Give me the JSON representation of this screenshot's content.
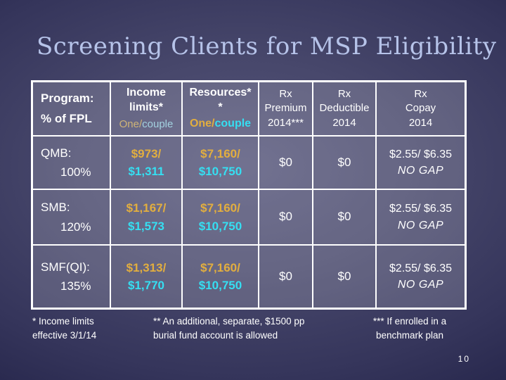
{
  "slide": {
    "title": "Screening Clients for MSP Eligibility",
    "page_number": "10"
  },
  "colors": {
    "background_center": "#56567b",
    "background_edge": "#141438",
    "title_text": "#b6c3e9",
    "table_border": "#ffffff",
    "gold_accent": "#e2ae3f",
    "cyan_accent": "#35dff2",
    "muted_gold": "#cfb477",
    "muted_cyan": "#a3d2e0",
    "body_text": "#ffffff"
  },
  "table": {
    "header": {
      "program_line1": "Program:",
      "program_line2": "% of FPL",
      "income_line1": "Income",
      "income_line2": "limits*",
      "income_one": "One/",
      "income_couple": "couple",
      "resources_line1": "Resources*",
      "resources_line2": "*",
      "resources_one": "One/",
      "resources_couple": "couple",
      "premium_line1": "Rx",
      "premium_line2": "Premium",
      "premium_line3": "2014***",
      "deductible_line1": "Rx",
      "deductible_line2": "Deductible",
      "deductible_line3": "2014",
      "copay_line1": "Rx",
      "copay_line2": "Copay",
      "copay_line3": "2014"
    },
    "rows": [
      {
        "program1": "QMB:",
        "program2": "100%",
        "income_one": "$973/",
        "income_couple": "$1,311",
        "resources_one": "$7,160/",
        "resources_couple": "$10,750",
        "premium": "$0",
        "deductible": "$0",
        "copay1": "$2.55/ $6.35",
        "copay2": "NO GAP"
      },
      {
        "program1": "SMB:",
        "program2": "120%",
        "income_one": "$1,167/",
        "income_couple": "$1,573",
        "resources_one": "$7,160/",
        "resources_couple": "$10,750",
        "premium": "$0",
        "deductible": "$0",
        "copay1": "$2.55/ $6.35",
        "copay2": "NO GAP"
      },
      {
        "program1": "SMF(QI):",
        "program2": "135%",
        "income_one": "$1,313/",
        "income_couple": "$1,770",
        "resources_one": "$7,160/",
        "resources_couple": "$10,750",
        "premium": "$0",
        "deductible": "$0",
        "copay1": "$2.55/ $6.35",
        "copay2": "NO GAP"
      }
    ]
  },
  "footnotes": {
    "note1_line1": "* Income limits",
    "note1_line2": "effective 3/1/14",
    "note2_line1": "** An additional, separate, $1500 pp",
    "note2_line2": "burial fund account is allowed",
    "note3_line1": "*** If enrolled in a",
    "note3_line2": "benchmark plan"
  }
}
